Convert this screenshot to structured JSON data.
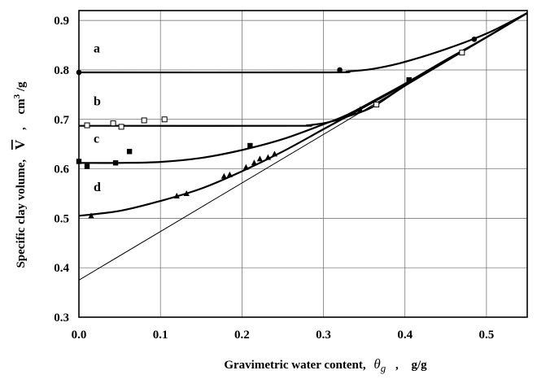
{
  "chart_data": {
    "type": "scatter",
    "xlabel": "Gravimetric water content, θg , g/g",
    "ylabel": "Specific clay volume, V̄ , cm3 /g",
    "xlabel_parts": {
      "text": "Gravimetric water content,",
      "symbol": "θ",
      "subscript": "g",
      "comma": ",",
      "unit": "g/g"
    },
    "ylabel_parts": {
      "text": "Specific clay volume,",
      "symbol": "V",
      "comma": ",",
      "unit": "cm",
      "unit_exp": "3",
      "unit_tail": " /g"
    },
    "xlim": [
      0.0,
      0.55
    ],
    "ylim": [
      0.3,
      0.92
    ],
    "xticks": [
      0.0,
      0.1,
      0.2,
      0.3,
      0.4,
      0.5
    ],
    "xtick_labels": [
      "0.0",
      "0.1",
      "0.2",
      "0.3",
      "0.4",
      "0.5"
    ],
    "yticks": [
      0.3,
      0.4,
      0.5,
      0.6,
      0.7,
      0.8,
      0.9
    ],
    "ytick_labels": [
      "0.3",
      "0.4",
      "0.5",
      "0.6",
      "0.7",
      "0.8",
      "0.9"
    ],
    "grid": true,
    "reference_line": {
      "x": [
        0.0,
        0.55
      ],
      "y": [
        0.375,
        0.915
      ]
    },
    "series": [
      {
        "name": "a",
        "marker": "circle",
        "points": [
          [
            0.0,
            0.795
          ],
          [
            0.32,
            0.8
          ],
          [
            0.485,
            0.862
          ]
        ],
        "curve": [
          [
            0.0,
            0.795
          ],
          [
            0.3,
            0.795
          ],
          [
            0.33,
            0.797
          ],
          [
            0.36,
            0.802
          ],
          [
            0.39,
            0.812
          ],
          [
            0.42,
            0.826
          ],
          [
            0.45,
            0.842
          ],
          [
            0.48,
            0.86
          ],
          [
            0.51,
            0.881
          ],
          [
            0.55,
            0.915
          ]
        ]
      },
      {
        "name": "b",
        "marker": "square-open",
        "points": [
          [
            0.01,
            0.688
          ],
          [
            0.042,
            0.692
          ],
          [
            0.052,
            0.685
          ],
          [
            0.08,
            0.698
          ],
          [
            0.105,
            0.7
          ],
          [
            0.365,
            0.73
          ],
          [
            0.47,
            0.835
          ]
        ],
        "curve": [
          [
            0.0,
            0.687
          ],
          [
            0.26,
            0.687
          ],
          [
            0.28,
            0.688
          ],
          [
            0.3,
            0.692
          ],
          [
            0.31,
            0.696
          ],
          [
            0.32,
            0.7
          ],
          [
            0.33,
            0.706
          ],
          [
            0.36,
            0.725
          ],
          [
            0.4,
            0.768
          ],
          [
            0.45,
            0.817
          ],
          [
            0.5,
            0.866
          ],
          [
            0.55,
            0.915
          ]
        ]
      },
      {
        "name": "c",
        "marker": "square-filled",
        "points": [
          [
            0.0,
            0.615
          ],
          [
            0.01,
            0.605
          ],
          [
            0.045,
            0.612
          ],
          [
            0.062,
            0.635
          ],
          [
            0.21,
            0.647
          ],
          [
            0.405,
            0.78
          ]
        ],
        "curve": [
          [
            0.0,
            0.612
          ],
          [
            0.05,
            0.612
          ],
          [
            0.1,
            0.614
          ],
          [
            0.15,
            0.622
          ],
          [
            0.2,
            0.638
          ],
          [
            0.25,
            0.66
          ],
          [
            0.3,
            0.69
          ],
          [
            0.33,
            0.71
          ],
          [
            0.37,
            0.745
          ],
          [
            0.4,
            0.772
          ],
          [
            0.45,
            0.82
          ],
          [
            0.5,
            0.866
          ],
          [
            0.55,
            0.915
          ]
        ]
      },
      {
        "name": "d",
        "marker": "triangle",
        "points": [
          [
            0.015,
            0.505
          ],
          [
            0.12,
            0.545
          ],
          [
            0.132,
            0.55
          ],
          [
            0.178,
            0.585
          ],
          [
            0.185,
            0.588
          ],
          [
            0.205,
            0.603
          ],
          [
            0.215,
            0.612
          ],
          [
            0.222,
            0.62
          ],
          [
            0.232,
            0.623
          ],
          [
            0.24,
            0.63
          ],
          [
            0.345,
            0.72
          ]
        ],
        "curve": [
          [
            0.0,
            0.505
          ],
          [
            0.05,
            0.515
          ],
          [
            0.1,
            0.535
          ],
          [
            0.15,
            0.56
          ],
          [
            0.2,
            0.595
          ],
          [
            0.25,
            0.635
          ],
          [
            0.3,
            0.68
          ],
          [
            0.35,
            0.725
          ],
          [
            0.4,
            0.77
          ],
          [
            0.45,
            0.818
          ],
          [
            0.5,
            0.866
          ],
          [
            0.55,
            0.915
          ]
        ]
      }
    ],
    "curve_labels": [
      {
        "text": "a",
        "x": 0.018,
        "y": 0.835
      },
      {
        "text": "b",
        "x": 0.018,
        "y": 0.728
      },
      {
        "text": "c",
        "x": 0.018,
        "y": 0.653
      },
      {
        "text": "d",
        "x": 0.018,
        "y": 0.555
      }
    ]
  }
}
